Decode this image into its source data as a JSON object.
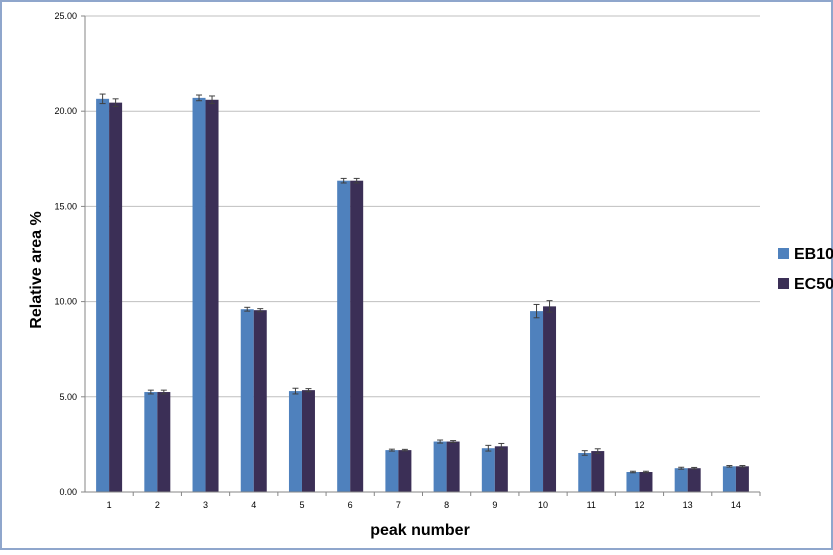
{
  "chart_data": {
    "type": "bar",
    "xlabel": "peak number",
    "ylabel": "Relative area %",
    "ylim": [
      0,
      25
    ],
    "yticks": [
      "0.00",
      "5.00",
      "10.00",
      "15.00",
      "20.00",
      "25.00"
    ],
    "categories": [
      "1",
      "2",
      "3",
      "4",
      "5",
      "6",
      "7",
      "8",
      "9",
      "10",
      "11",
      "12",
      "13",
      "14"
    ],
    "grid": "horizontal",
    "legend_position": "right",
    "series": [
      {
        "name": "EB10",
        "color": "#4f81bd",
        "values": [
          20.65,
          5.25,
          20.7,
          9.6,
          5.3,
          16.35,
          2.2,
          2.65,
          2.3,
          9.5,
          2.05,
          1.05,
          1.25,
          1.35
        ],
        "errors": [
          0.25,
          0.1,
          0.15,
          0.1,
          0.15,
          0.12,
          0.05,
          0.08,
          0.15,
          0.35,
          0.12,
          0.04,
          0.05,
          0.04
        ]
      },
      {
        "name": "EC50",
        "color": "#3b2f56",
        "values": [
          20.45,
          5.25,
          20.6,
          9.55,
          5.35,
          16.35,
          2.2,
          2.65,
          2.4,
          9.75,
          2.15,
          1.05,
          1.25,
          1.35
        ],
        "errors": [
          0.2,
          0.1,
          0.2,
          0.08,
          0.08,
          0.12,
          0.04,
          0.05,
          0.15,
          0.3,
          0.12,
          0.04,
          0.04,
          0.04
        ]
      }
    ]
  },
  "colors": {
    "frame_border": "#8fa6cc",
    "axis": "#868686",
    "grid": "#bfbfbf",
    "error_bar": "#404040"
  }
}
